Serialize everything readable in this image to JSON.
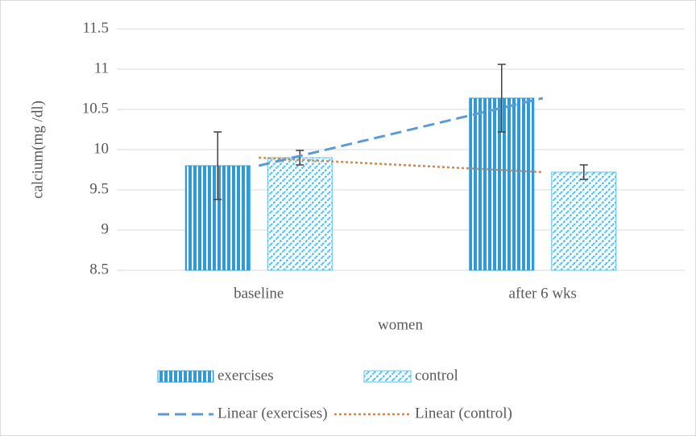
{
  "chart_data": {
    "type": "bar",
    "categories": [
      "baseline",
      "after 6 wks"
    ],
    "x_label": "women",
    "y_label": "calcium(mg /dl)",
    "series": [
      {
        "name": "exercises",
        "color": "#2e9bd6",
        "pattern": "vertical",
        "values": [
          9.8,
          10.64
        ],
        "errors": [
          0.42,
          0.42
        ]
      },
      {
        "name": "control",
        "color": "#5bc0eb",
        "pattern": "diagonal",
        "values": [
          9.9,
          9.72
        ],
        "errors": [
          0.09,
          0.09
        ]
      }
    ],
    "trendlines": [
      {
        "name": "Linear (exercises)",
        "series": 0,
        "color": "#5b9bd5",
        "dash": "dashed"
      },
      {
        "name": "Linear (control)",
        "series": 1,
        "color": "#ed7d31",
        "dash": "dotted"
      }
    ],
    "ylim": [
      8.5,
      11.5
    ],
    "yticks": [
      8.5,
      9,
      9.5,
      10,
      10.5,
      11,
      11.5
    ],
    "grid": true,
    "legend": "bottom"
  }
}
